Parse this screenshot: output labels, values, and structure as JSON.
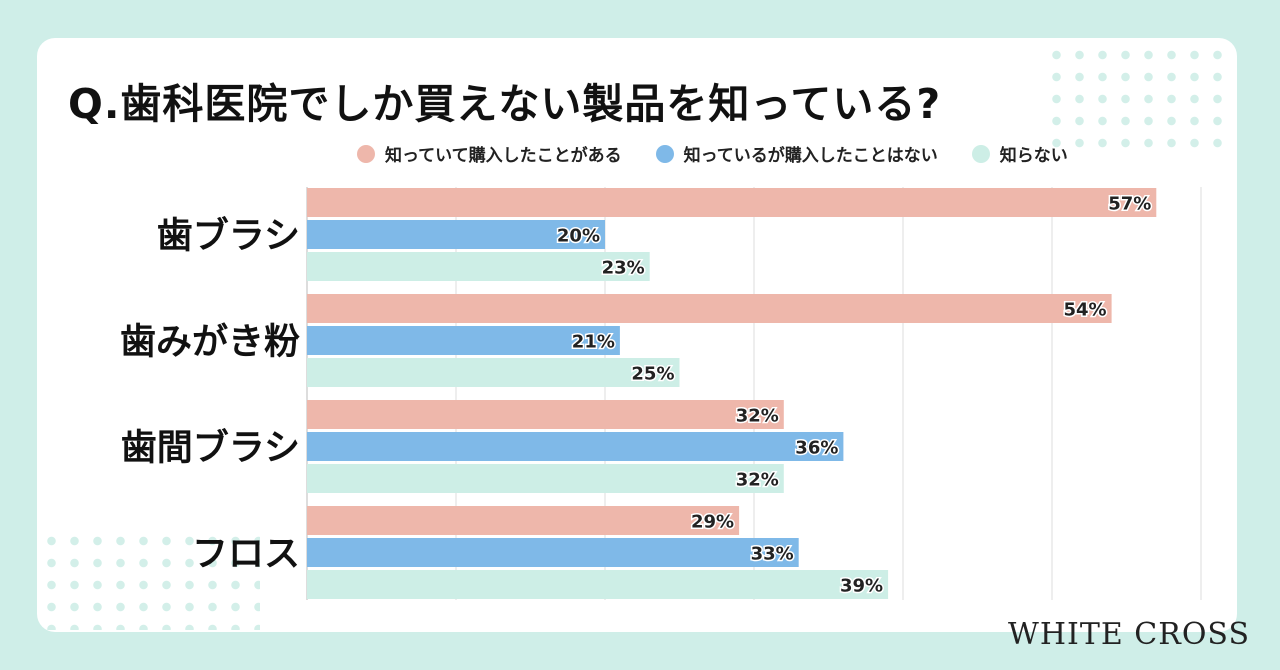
{
  "chart_data": {
    "type": "bar",
    "orientation": "horizontal",
    "title": "Q.歯科医院でしか買えない製品を知っている?",
    "categories": [
      "歯ブラシ",
      "歯みがき粉",
      "歯間ブラシ",
      "フロス"
    ],
    "series": [
      {
        "name": "知っていて購入したことがある",
        "color": "#eeb7ab",
        "values": [
          57,
          54,
          32,
          29
        ]
      },
      {
        "name": "知っているが購入したことはない",
        "color": "#7fb9e8",
        "values": [
          20,
          21,
          36,
          33
        ]
      },
      {
        "name": "知らない",
        "color": "#cdeee6",
        "values": [
          23,
          25,
          32,
          39
        ]
      }
    ],
    "xlim": [
      0,
      60
    ],
    "grid": true,
    "legend": "top",
    "value_suffix": "%"
  },
  "brand": "WHITE CROSS"
}
